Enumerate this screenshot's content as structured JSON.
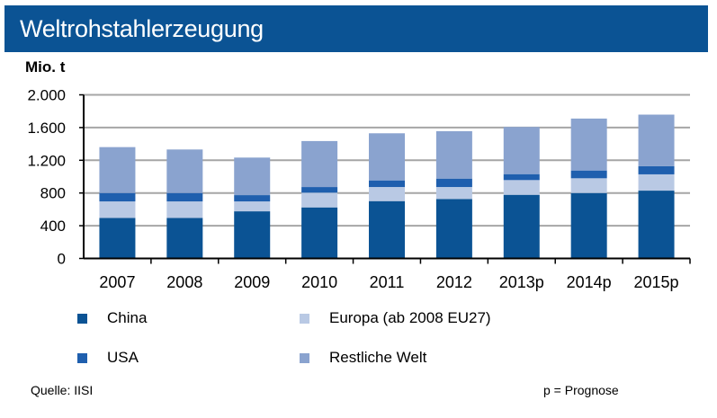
{
  "title": "Weltrohstahlerzeugung",
  "source": "Quelle:  IISI",
  "note": "p = Prognose",
  "chart_data": {
    "type": "bar",
    "stacked": true,
    "ylabel": "Mio. t",
    "ylim": [
      0,
      2000
    ],
    "yticks": [
      0,
      400,
      800,
      1200,
      1600,
      2000
    ],
    "ytick_labels": [
      "0",
      "400",
      "800",
      "1.200",
      "1.600",
      "2.000"
    ],
    "grid": true,
    "legend_position": "bottom",
    "categories": [
      "2007",
      "2008",
      "2009",
      "2010",
      "2011",
      "2012",
      "2013p",
      "2014p",
      "2015p"
    ],
    "series": [
      {
        "name": "China",
        "color": "#0b5394",
        "values": [
          495,
          495,
          576,
          624,
          701,
          727,
          778,
          800,
          829
        ]
      },
      {
        "name": "Europa (ab 2008 EU27)",
        "color": "#b9c9e4",
        "values": [
          202,
          202,
          121,
          180,
          172,
          146,
          180,
          180,
          199
        ]
      },
      {
        "name": "USA",
        "color": "#1f5fae",
        "values": [
          103,
          103,
          77,
          69,
          81,
          103,
          73,
          95,
          99
        ]
      },
      {
        "name": "Restliche Welt",
        "color": "#8aa3cf",
        "values": [
          561,
          532,
          459,
          562,
          576,
          580,
          576,
          635,
          631
        ]
      }
    ]
  }
}
